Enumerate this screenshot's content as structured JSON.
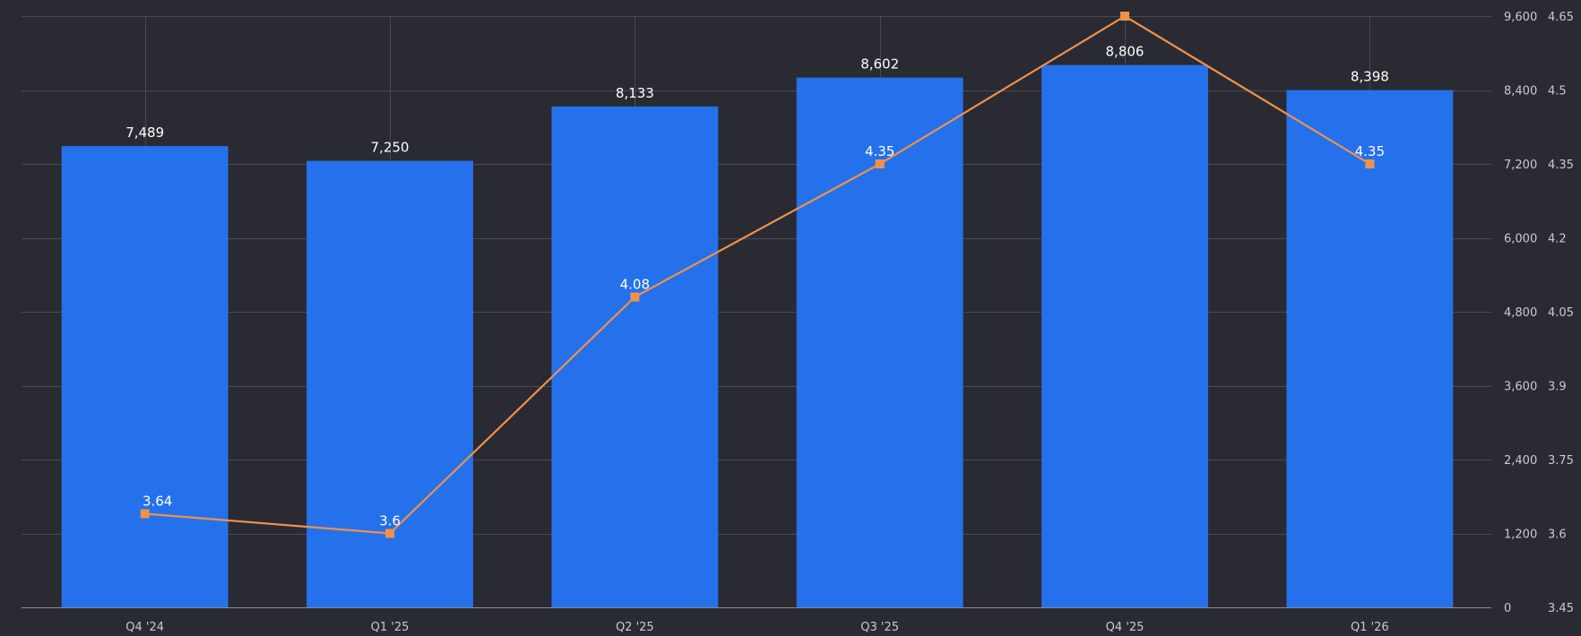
{
  "chart_data": {
    "type": "bar",
    "categories": [
      "Q4 '24",
      "Q1 '25",
      "Q2 '25",
      "Q3 '25",
      "Q4 '25",
      "Q1 '26"
    ],
    "series": [
      {
        "type": "bar",
        "axis": "left",
        "color": "#2571eb",
        "values": [
          7489,
          7250,
          8133,
          8602,
          8806,
          8398
        ],
        "labels": [
          "7,489",
          "7,250",
          "8,133",
          "8,602",
          "8,806",
          "8,398"
        ]
      },
      {
        "type": "line",
        "axis": "right",
        "color": "#f0914a",
        "values": [
          3.64,
          3.6,
          4.08,
          4.35,
          4.65,
          4.35
        ],
        "labels": [
          "3.64",
          "3.6",
          "4.08",
          "4.35",
          "",
          "4.35"
        ]
      }
    ],
    "y_left": {
      "min": 0,
      "max": 9600,
      "ticks": [
        0,
        1200,
        2400,
        3600,
        4800,
        6000,
        7200,
        8400,
        9600
      ],
      "tick_labels": [
        "0",
        "1,200",
        "2,400",
        "3,600",
        "4,800",
        "6,000",
        "7,200",
        "8,400",
        "9,600"
      ]
    },
    "y_right": {
      "min": 3.45,
      "max": 4.65,
      "ticks": [
        3.45,
        3.6,
        3.75,
        3.9,
        4.05,
        4.2,
        4.35,
        4.5,
        4.65
      ],
      "tick_labels": [
        "3.45",
        "3.6",
        "3.75",
        "3.9",
        "4.05",
        "4.2",
        "4.35",
        "4.5",
        "4.65"
      ]
    },
    "grid": true,
    "legend": "none",
    "title": "",
    "xlabel": "",
    "ylabel": ""
  }
}
